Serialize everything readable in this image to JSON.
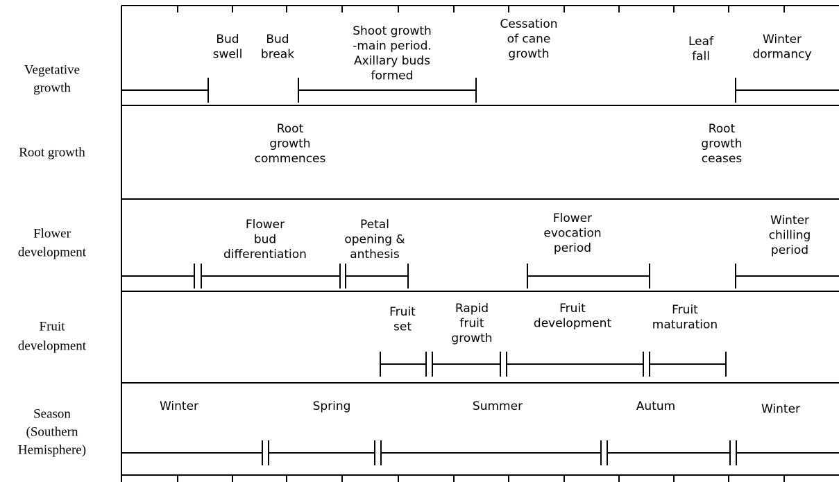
{
  "rows": [
    {
      "label": [
        "Vegetative",
        "growth"
      ],
      "notes": [
        {
          "lines": [
            "Bud",
            "swell"
          ]
        },
        {
          "lines": [
            "Bud",
            "break"
          ]
        },
        {
          "lines": [
            "Shoot growth",
            "-main period.",
            "Axillary buds",
            "formed"
          ]
        },
        {
          "lines": [
            "Cessation",
            "of cane",
            "growth"
          ]
        },
        {
          "lines": [
            "Leaf",
            "fall"
          ]
        },
        {
          "lines": [
            "Winter",
            "dormancy"
          ]
        }
      ]
    },
    {
      "label": [
        "Root growth"
      ],
      "notes": [
        {
          "lines": [
            "Root",
            "growth",
            "commences"
          ]
        },
        {
          "lines": [
            "Root",
            "growth",
            "ceases"
          ]
        }
      ]
    },
    {
      "label": [
        "Flower",
        "development"
      ],
      "notes": [
        {
          "lines": [
            "Flower",
            "bud",
            "differentiation"
          ]
        },
        {
          "lines": [
            "Petal",
            "opening &",
            "anthesis"
          ]
        },
        {
          "lines": [
            "Flower",
            "evocation",
            "period"
          ]
        },
        {
          "lines": [
            "Winter",
            "chilling",
            "period"
          ]
        }
      ]
    },
    {
      "label": [
        "Fruit",
        "development"
      ],
      "notes": [
        {
          "lines": [
            "Fruit",
            "set"
          ]
        },
        {
          "lines": [
            "Rapid",
            "fruit",
            "growth"
          ]
        },
        {
          "lines": [
            "Fruit",
            "development"
          ]
        },
        {
          "lines": [
            "Fruit",
            "maturation"
          ]
        }
      ]
    },
    {
      "label": [
        "Season",
        "(Southern",
        "Hemisphere)"
      ],
      "notes": [
        {
          "lines": [
            "Winter"
          ]
        },
        {
          "lines": [
            "Spring"
          ]
        },
        {
          "lines": [
            "Summer"
          ]
        },
        {
          "lines": [
            "Autum"
          ]
        },
        {
          "lines": [
            "Winter"
          ]
        }
      ]
    }
  ]
}
